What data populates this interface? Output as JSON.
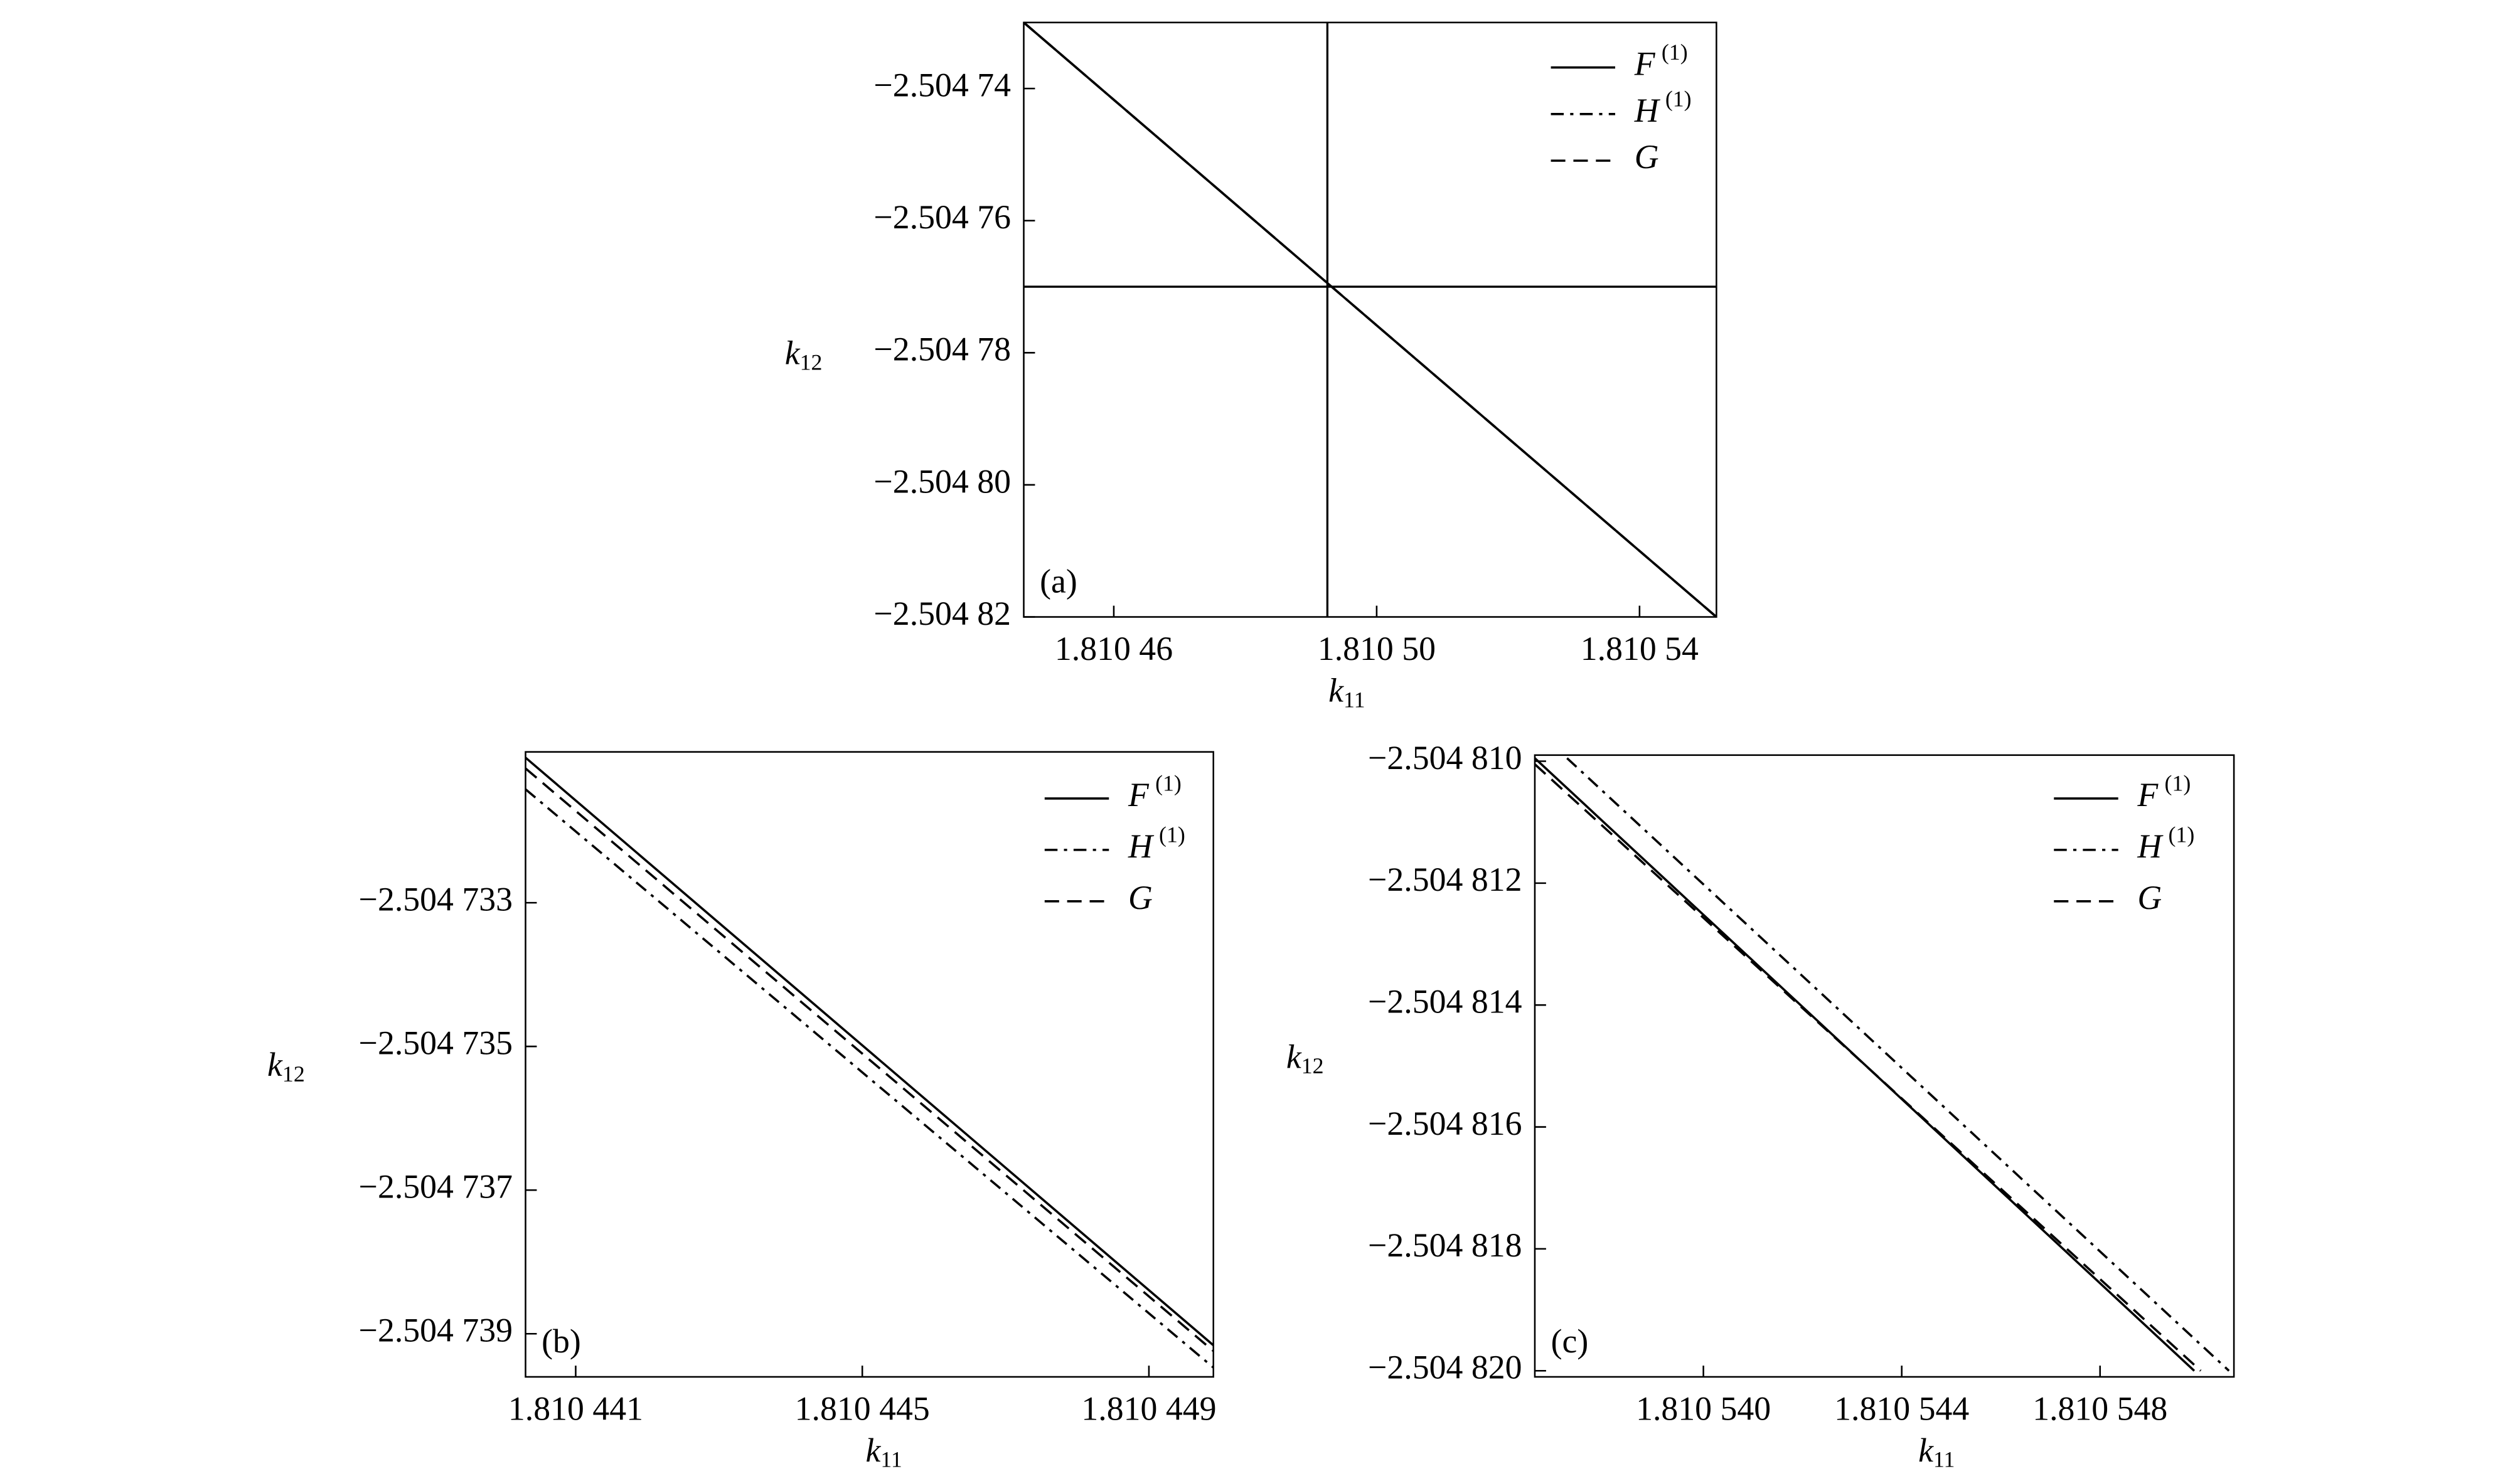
{
  "chart_data": [
    {
      "type": "line",
      "panel_label": "(a)",
      "xlabel": "k",
      "xlabel_sub": "11",
      "ylabel": "k",
      "ylabel_sub": "12",
      "xlim": [
        1.8104463,
        1.8105517
      ],
      "ylim": [
        -2.50482,
        -2.50473
      ],
      "xticks": [
        {
          "value": 1.81046,
          "label": "1.810 46"
        },
        {
          "value": 1.8105,
          "label": "1.810 50"
        },
        {
          "value": 1.81054,
          "label": "1.810 54"
        }
      ],
      "yticks": [
        {
          "value": -2.50474,
          "label": "−2.504 74"
        },
        {
          "value": -2.50476,
          "label": "−2.504 76"
        },
        {
          "value": -2.50478,
          "label": "−2.504 78"
        },
        {
          "value": -2.5048,
          "label": "−2.504 80"
        },
        {
          "value": -2.50482,
          "label": "−2.504 82"
        }
      ],
      "vlines": [
        1.8104925
      ],
      "hlines": [
        -2.50477
      ],
      "series": [
        {
          "name": "F",
          "name_sup": "(1)",
          "color": "#000000",
          "dash": "solid",
          "x": [
            1.8104463,
            1.8105517
          ],
          "values": [
            -2.50473,
            -2.50482
          ]
        },
        {
          "name": "H",
          "name_sup": "(1)",
          "color": "#000000",
          "dash": "dashdot",
          "x": [
            1.8104463,
            1.8105517
          ],
          "values": [
            -2.50473,
            -2.50482
          ]
        },
        {
          "name": "G",
          "color": "#000000",
          "dash": "dash",
          "x": [
            1.8104463,
            1.8105517
          ],
          "values": [
            -2.50473,
            -2.50482
          ]
        }
      ]
    },
    {
      "type": "line",
      "panel_label": "(b)",
      "xlabel": "k",
      "xlabel_sub": "11",
      "ylabel": "k",
      "ylabel_sub": "12",
      "xlim": [
        1.8104403,
        1.8104499
      ],
      "ylim": [
        -2.5047396,
        -2.5047309
      ],
      "xticks": [
        {
          "value": 1.810441,
          "label": "1.810 441"
        },
        {
          "value": 1.810445,
          "label": "1.810 445"
        },
        {
          "value": 1.810449,
          "label": "1.810 449"
        }
      ],
      "yticks": [
        {
          "value": -2.504733,
          "label": "−2.504 733"
        },
        {
          "value": -2.504735,
          "label": "−2.504 735"
        },
        {
          "value": -2.504737,
          "label": "−2.504 737"
        },
        {
          "value": -2.504739,
          "label": "−2.504 739"
        }
      ],
      "series": [
        {
          "name": "F",
          "name_sup": "(1)",
          "color": "#000000",
          "dash": "solid",
          "x": [
            1.8104403,
            1.8104499
          ],
          "values": [
            -2.50473098,
            -2.50473916
          ]
        },
        {
          "name": "H",
          "name_sup": "(1)",
          "color": "#000000",
          "dash": "dashdot",
          "x": [
            1.8104403,
            1.8104499
          ],
          "values": [
            -2.50473142,
            -2.50473947
          ]
        },
        {
          "name": "G",
          "color": "#000000",
          "dash": "dash",
          "x": [
            1.8104403,
            1.8104499
          ],
          "values": [
            -2.50473113,
            -2.50473924
          ]
        }
      ]
    },
    {
      "type": "line",
      "panel_label": "(c)",
      "xlabel": "k",
      "xlabel_sub": "11",
      "ylabel": "k",
      "ylabel_sub": "12",
      "xlim": [
        1.8105366,
        1.8105507
      ],
      "ylim": [
        -2.5048201,
        -2.5048099
      ],
      "xticks": [
        {
          "value": 1.81054,
          "label": "1.810 540"
        },
        {
          "value": 1.810544,
          "label": "1.810 544"
        },
        {
          "value": 1.810548,
          "label": "1.810 548"
        }
      ],
      "yticks": [
        {
          "value": -2.50481,
          "label": "−2.504 810"
        },
        {
          "value": -2.504812,
          "label": "−2.504 812"
        },
        {
          "value": -2.504814,
          "label": "−2.504 814"
        },
        {
          "value": -2.504816,
          "label": "−2.504 816"
        },
        {
          "value": -2.504818,
          "label": "−2.504 818"
        },
        {
          "value": -2.50482,
          "label": "−2.504 820"
        }
      ],
      "series": [
        {
          "name": "F",
          "name_sup": "(1)",
          "color": "#000000",
          "dash": "solid",
          "x": [
            1.8105366,
            1.8105499
          ],
          "values": [
            -2.50480995,
            -2.50482
          ]
        },
        {
          "name": "H",
          "name_sup": "(1)",
          "color": "#000000",
          "dash": "dashdot",
          "x": [
            1.81053725,
            1.8105506
          ],
          "values": [
            -2.50480995,
            -2.50482
          ]
        },
        {
          "name": "G",
          "color": "#000000",
          "dash": "dash",
          "x": [
            1.8105366,
            1.81055003
          ],
          "values": [
            -2.50481005,
            -2.50482
          ]
        }
      ]
    }
  ]
}
